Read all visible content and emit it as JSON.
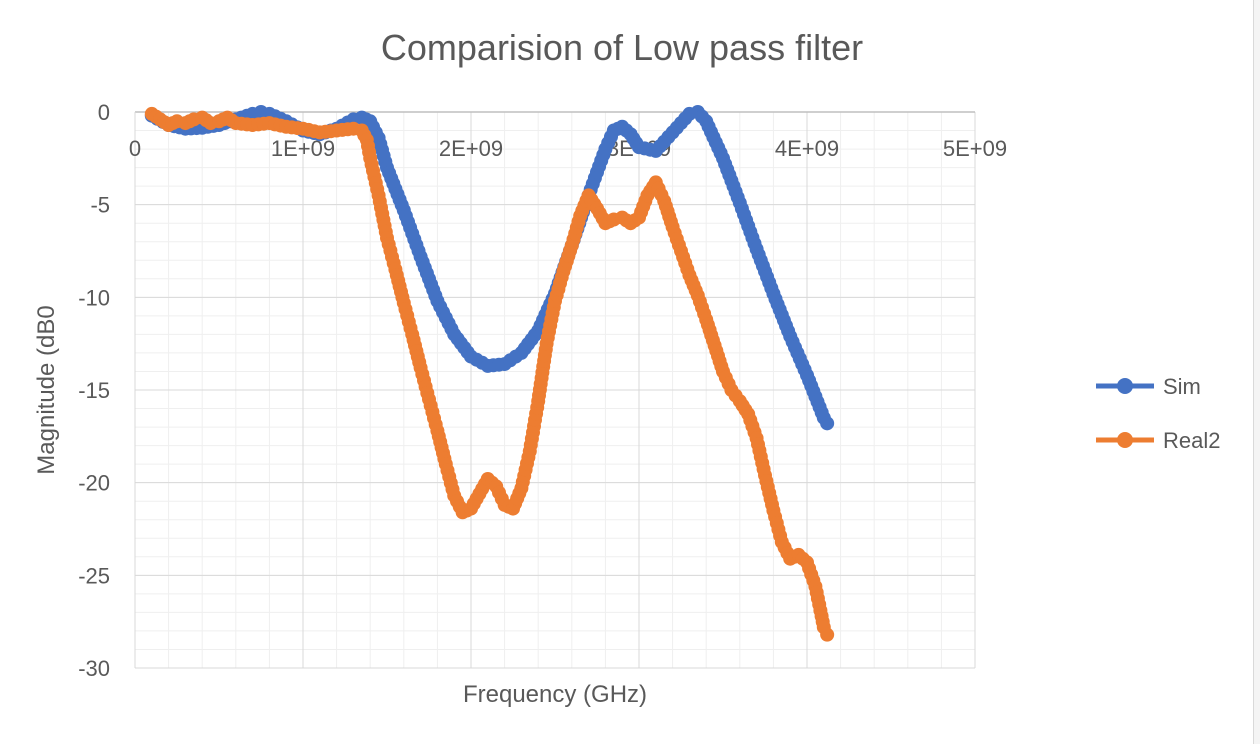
{
  "chart_data": {
    "type": "scatter",
    "title": "Comparision of Low pass filter",
    "xlabel": "Frequency (GHz)",
    "ylabel": "Magnitude (dB0",
    "xlim": [
      0,
      5000000000
    ],
    "ylim": [
      -30,
      0
    ],
    "x_ticks": [
      0,
      1000000000,
      2000000000,
      3000000000,
      4000000000,
      5000000000
    ],
    "x_tick_labels": [
      "0",
      "1E+09",
      "2E+09",
      "3E+09",
      "4E+09",
      "5E+09"
    ],
    "y_ticks": [
      0,
      -5,
      -10,
      -15,
      -20,
      -25,
      -30
    ],
    "y_tick_labels": [
      "0",
      "-5",
      "-10",
      "-15",
      "-20",
      "-25",
      "-30"
    ],
    "x_axis_position": "top",
    "grid": true,
    "minor_grid": true,
    "legend_position": "right",
    "series": [
      {
        "name": "Sim",
        "color": "#4472C4",
        "points": [
          [
            100000000,
            -0.2
          ],
          [
            200000000,
            -0.7
          ],
          [
            300000000,
            -0.9
          ],
          [
            400000000,
            -0.85
          ],
          [
            500000000,
            -0.7
          ],
          [
            600000000,
            -0.4
          ],
          [
            700000000,
            -0.1
          ],
          [
            750000000,
            0.0
          ],
          [
            800000000,
            -0.1
          ],
          [
            900000000,
            -0.5
          ],
          [
            1000000000,
            -1.0
          ],
          [
            1100000000,
            -1.2
          ],
          [
            1200000000,
            -0.9
          ],
          [
            1300000000,
            -0.4
          ],
          [
            1350000000,
            -0.3
          ],
          [
            1400000000,
            -0.5
          ],
          [
            1450000000,
            -1.4
          ],
          [
            1500000000,
            -3.0
          ],
          [
            1600000000,
            -5.3
          ],
          [
            1700000000,
            -7.8
          ],
          [
            1800000000,
            -10.2
          ],
          [
            1900000000,
            -12.0
          ],
          [
            2000000000,
            -13.2
          ],
          [
            2100000000,
            -13.7
          ],
          [
            2200000000,
            -13.6
          ],
          [
            2300000000,
            -13.0
          ],
          [
            2400000000,
            -11.8
          ],
          [
            2500000000,
            -9.8
          ],
          [
            2600000000,
            -7.2
          ],
          [
            2700000000,
            -4.5
          ],
          [
            2800000000,
            -2.0
          ],
          [
            2850000000,
            -1.0
          ],
          [
            2900000000,
            -0.8
          ],
          [
            2950000000,
            -1.2
          ],
          [
            3000000000,
            -1.9
          ],
          [
            3100000000,
            -2.1
          ],
          [
            3200000000,
            -1.1
          ],
          [
            3300000000,
            -0.1
          ],
          [
            3350000000,
            0.0
          ],
          [
            3400000000,
            -0.5
          ],
          [
            3500000000,
            -2.5
          ],
          [
            3600000000,
            -4.9
          ],
          [
            3700000000,
            -7.4
          ],
          [
            3800000000,
            -9.8
          ],
          [
            3900000000,
            -12.1
          ],
          [
            4000000000,
            -14.2
          ],
          [
            4100000000,
            -16.5
          ],
          [
            4120000000,
            -16.8
          ]
        ]
      },
      {
        "name": "Real2",
        "color": "#ED7D31",
        "points": [
          [
            100000000,
            -0.1
          ],
          [
            150000000,
            -0.4
          ],
          [
            200000000,
            -0.7
          ],
          [
            250000000,
            -0.5
          ],
          [
            300000000,
            -0.6
          ],
          [
            350000000,
            -0.4
          ],
          [
            400000000,
            -0.3
          ],
          [
            450000000,
            -0.6
          ],
          [
            500000000,
            -0.5
          ],
          [
            550000000,
            -0.3
          ],
          [
            600000000,
            -0.6
          ],
          [
            700000000,
            -0.7
          ],
          [
            800000000,
            -0.6
          ],
          [
            900000000,
            -0.8
          ],
          [
            1000000000,
            -0.9
          ],
          [
            1100000000,
            -1.1
          ],
          [
            1200000000,
            -1.0
          ],
          [
            1300000000,
            -0.9
          ],
          [
            1350000000,
            -1.0
          ],
          [
            1380000000,
            -1.5
          ],
          [
            1400000000,
            -2.5
          ],
          [
            1450000000,
            -4.5
          ],
          [
            1500000000,
            -6.8
          ],
          [
            1550000000,
            -8.5
          ],
          [
            1600000000,
            -10.3
          ],
          [
            1650000000,
            -12.0
          ],
          [
            1700000000,
            -13.8
          ],
          [
            1750000000,
            -15.5
          ],
          [
            1800000000,
            -17.2
          ],
          [
            1850000000,
            -19.0
          ],
          [
            1900000000,
            -20.7
          ],
          [
            1950000000,
            -21.6
          ],
          [
            2000000000,
            -21.4
          ],
          [
            2050000000,
            -20.6
          ],
          [
            2100000000,
            -19.8
          ],
          [
            2150000000,
            -20.2
          ],
          [
            2200000000,
            -21.2
          ],
          [
            2250000000,
            -21.4
          ],
          [
            2300000000,
            -20.3
          ],
          [
            2350000000,
            -18.3
          ],
          [
            2400000000,
            -15.6
          ],
          [
            2450000000,
            -12.5
          ],
          [
            2500000000,
            -10.2
          ],
          [
            2550000000,
            -8.6
          ],
          [
            2600000000,
            -7.2
          ],
          [
            2650000000,
            -5.6
          ],
          [
            2700000000,
            -4.5
          ],
          [
            2750000000,
            -5.2
          ],
          [
            2800000000,
            -6.0
          ],
          [
            2850000000,
            -5.8
          ],
          [
            2900000000,
            -5.7
          ],
          [
            2950000000,
            -6.0
          ],
          [
            3000000000,
            -5.7
          ],
          [
            3050000000,
            -4.5
          ],
          [
            3100000000,
            -3.8
          ],
          [
            3150000000,
            -4.8
          ],
          [
            3200000000,
            -6.2
          ],
          [
            3250000000,
            -7.5
          ],
          [
            3300000000,
            -8.8
          ],
          [
            3350000000,
            -9.9
          ],
          [
            3400000000,
            -11.2
          ],
          [
            3450000000,
            -12.6
          ],
          [
            3500000000,
            -14.0
          ],
          [
            3550000000,
            -15.0
          ],
          [
            3600000000,
            -15.6
          ],
          [
            3650000000,
            -16.3
          ],
          [
            3700000000,
            -17.6
          ],
          [
            3750000000,
            -19.6
          ],
          [
            3800000000,
            -21.5
          ],
          [
            3850000000,
            -23.2
          ],
          [
            3900000000,
            -24.1
          ],
          [
            3950000000,
            -23.9
          ],
          [
            4000000000,
            -24.3
          ],
          [
            4050000000,
            -25.6
          ],
          [
            4080000000,
            -26.9
          ],
          [
            4100000000,
            -27.8
          ],
          [
            4120000000,
            -28.2
          ]
        ]
      }
    ]
  }
}
